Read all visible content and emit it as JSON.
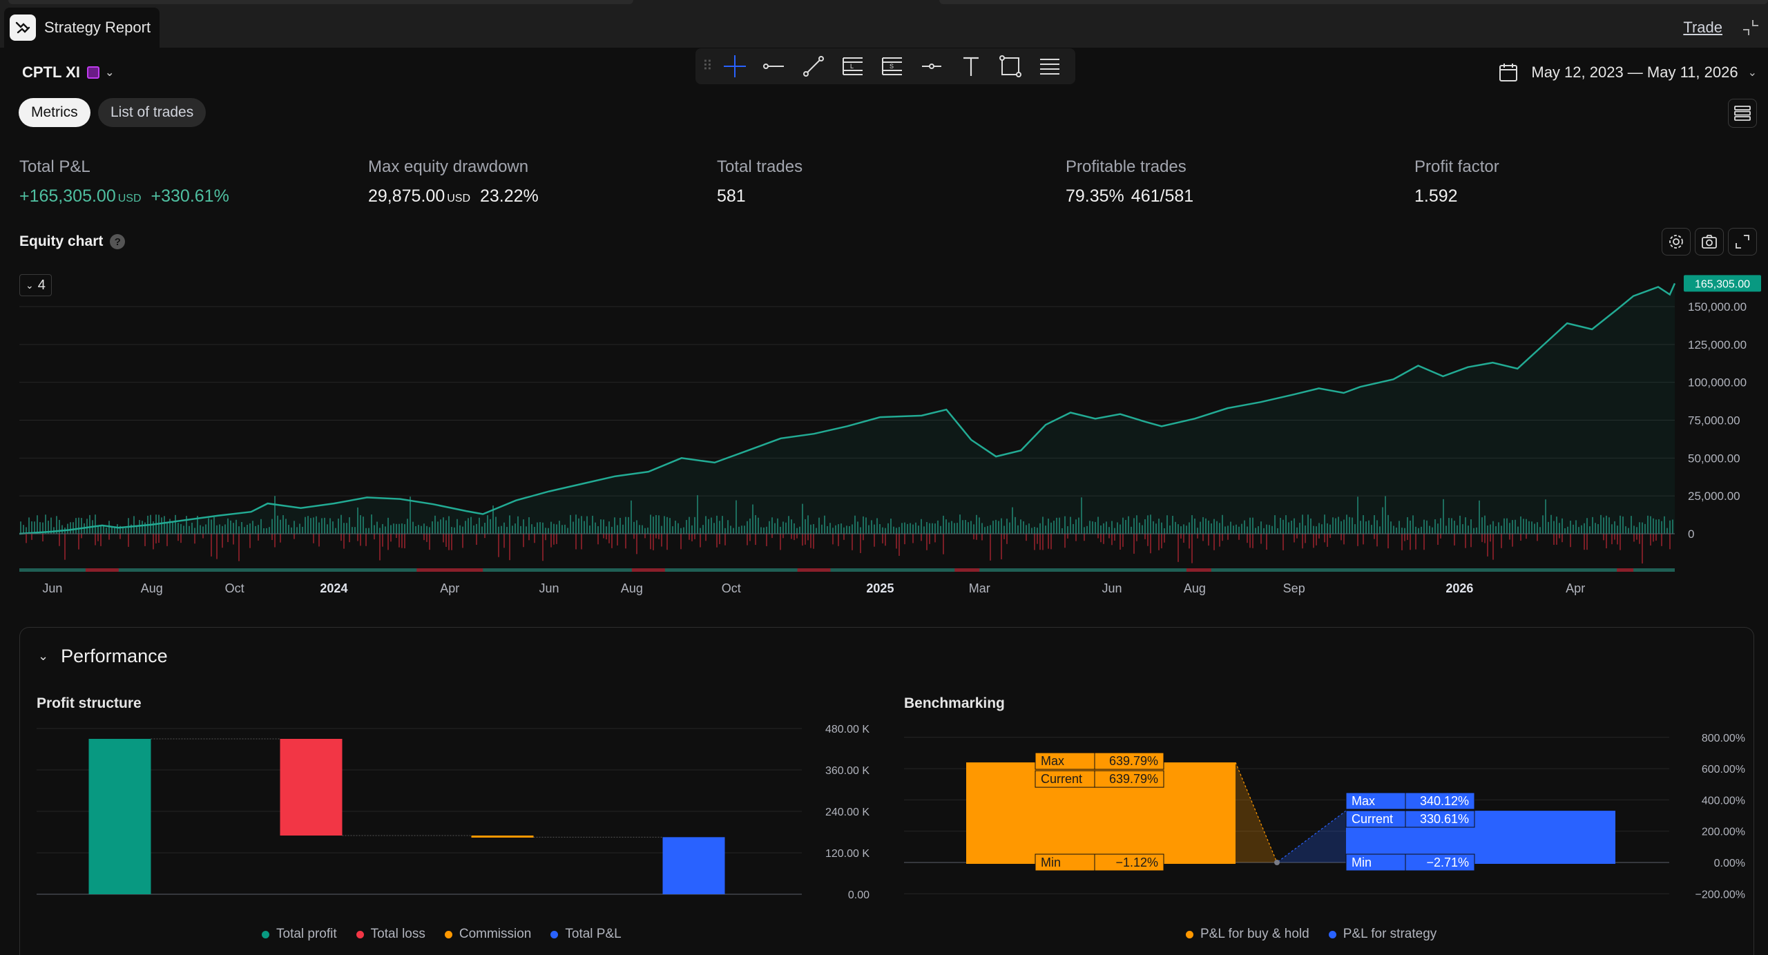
{
  "header": {
    "app_title": "Strategy Report",
    "trade_label": "Trade"
  },
  "toolbar": {
    "symbol": "CPTL XI",
    "date_range": "May 12, 2023 — May 11, 2026",
    "tabs": [
      {
        "label": "Metrics",
        "active": true
      },
      {
        "label": "List of trades",
        "active": false
      }
    ],
    "drawing_tools": [
      "crosshair-icon",
      "horizontal-ray-icon",
      "trend-line-icon",
      "long-position-icon",
      "short-position-icon",
      "price-line-icon",
      "text-icon",
      "rectangle-icon",
      "more-tools-icon"
    ]
  },
  "metrics": [
    {
      "label": "Total P&L",
      "value": "+165,305.00",
      "unit": "USD",
      "extra": "+330.61%",
      "positive": true
    },
    {
      "label": "Max equity drawdown",
      "value": "29,875.00",
      "unit": "USD",
      "extra": "23.22%",
      "positive": false
    },
    {
      "label": "Total trades",
      "value": "581",
      "unit": "",
      "extra": "",
      "positive": false
    },
    {
      "label": "Profitable trades",
      "value": "79.35%",
      "unit": "",
      "extra": "461/581",
      "positive": false
    },
    {
      "label": "Profit factor",
      "value": "1.592",
      "unit": "",
      "extra": "",
      "positive": false
    }
  ],
  "equity_chart": {
    "title": "Equity chart",
    "series_count": "4",
    "chart_data": {
      "type": "line",
      "current_value_label": "165,305.00",
      "current_value": 165305,
      "y_ticks": [
        0,
        25000,
        50000,
        75000,
        100000,
        125000,
        150000
      ],
      "y_tick_labels": [
        "0",
        "25,000.00",
        "50,000.00",
        "75,000.00",
        "100,000.00",
        "125,000.00",
        "150,000.00"
      ],
      "x_tick_labels": [
        {
          "label": "Jun",
          "bold": false
        },
        {
          "label": "Aug",
          "bold": false
        },
        {
          "label": "Oct",
          "bold": false
        },
        {
          "label": "2024",
          "bold": true
        },
        {
          "label": "Apr",
          "bold": false
        },
        {
          "label": "Jun",
          "bold": false
        },
        {
          "label": "Aug",
          "bold": false
        },
        {
          "label": "Oct",
          "bold": false
        },
        {
          "label": "2025",
          "bold": true
        },
        {
          "label": "Mar",
          "bold": false
        },
        {
          "label": "Jun",
          "bold": false
        },
        {
          "label": "Aug",
          "bold": false
        },
        {
          "label": "Sep",
          "bold": false
        },
        {
          "label": "2026",
          "bold": true
        },
        {
          "label": "Apr",
          "bold": false
        }
      ],
      "x_tick_pos": [
        0.02,
        0.08,
        0.13,
        0.19,
        0.26,
        0.32,
        0.37,
        0.43,
        0.52,
        0.58,
        0.66,
        0.71,
        0.77,
        0.87,
        0.94
      ],
      "equity": [
        [
          0.0,
          0
        ],
        [
          0.02,
          1500
        ],
        [
          0.03,
          2500
        ],
        [
          0.05,
          5500
        ],
        [
          0.06,
          4000
        ],
        [
          0.08,
          6000
        ],
        [
          0.1,
          9000
        ],
        [
          0.12,
          12000
        ],
        [
          0.14,
          14500
        ],
        [
          0.15,
          20000
        ],
        [
          0.17,
          17000
        ],
        [
          0.19,
          20000
        ],
        [
          0.21,
          24000
        ],
        [
          0.23,
          23000
        ],
        [
          0.25,
          19500
        ],
        [
          0.27,
          15000
        ],
        [
          0.28,
          13000
        ],
        [
          0.3,
          22000
        ],
        [
          0.32,
          28000
        ],
        [
          0.34,
          33000
        ],
        [
          0.36,
          38000
        ],
        [
          0.38,
          41000
        ],
        [
          0.4,
          50000
        ],
        [
          0.42,
          47000
        ],
        [
          0.44,
          55000
        ],
        [
          0.46,
          63000
        ],
        [
          0.48,
          66000
        ],
        [
          0.5,
          71000
        ],
        [
          0.52,
          77000
        ],
        [
          0.545,
          78000
        ],
        [
          0.56,
          82000
        ],
        [
          0.575,
          62000
        ],
        [
          0.59,
          51000
        ],
        [
          0.605,
          55000
        ],
        [
          0.62,
          72000
        ],
        [
          0.635,
          80000
        ],
        [
          0.65,
          76000
        ],
        [
          0.665,
          79000
        ],
        [
          0.68,
          74000
        ],
        [
          0.69,
          71000
        ],
        [
          0.71,
          76000
        ],
        [
          0.73,
          83000
        ],
        [
          0.75,
          87000
        ],
        [
          0.77,
          92000
        ],
        [
          0.785,
          96000
        ],
        [
          0.8,
          93000
        ],
        [
          0.81,
          97000
        ],
        [
          0.83,
          102000
        ],
        [
          0.845,
          111000
        ],
        [
          0.86,
          104000
        ],
        [
          0.875,
          110000
        ],
        [
          0.89,
          113000
        ],
        [
          0.905,
          109000
        ],
        [
          0.92,
          124000
        ],
        [
          0.935,
          139000
        ],
        [
          0.95,
          135000
        ],
        [
          0.965,
          148000
        ],
        [
          0.975,
          157000
        ],
        [
          0.985,
          161000
        ],
        [
          0.99,
          163000
        ],
        [
          0.997,
          158000
        ],
        [
          1.0,
          165305
        ]
      ]
    }
  },
  "performance": {
    "title": "Performance",
    "profit_structure": {
      "title": "Profit structure",
      "chart_data": {
        "type": "bar",
        "categories": [
          "Total profit",
          "Total loss",
          "Commission",
          "Total P&L"
        ],
        "bars": [
          {
            "name": "Total profit",
            "start": 0,
            "end": 450000,
            "color": "#089981"
          },
          {
            "name": "Total loss",
            "start": 450000,
            "end": 170000,
            "color": "#f23645"
          },
          {
            "name": "Commission",
            "start": 170000,
            "end": 165305,
            "color": "#ff9800"
          },
          {
            "name": "Total P&L",
            "start": 0,
            "end": 165305,
            "color": "#2962ff"
          }
        ],
        "y_ticks": [
          0,
          120000,
          240000,
          360000,
          480000
        ],
        "y_tick_labels": [
          "0.00",
          "120.00 K",
          "240.00 K",
          "360.00 K",
          "480.00 K"
        ]
      },
      "legend": [
        {
          "label": "Total profit",
          "color": "#089981"
        },
        {
          "label": "Total loss",
          "color": "#f23645"
        },
        {
          "label": "Commission",
          "color": "#ff9800"
        },
        {
          "label": "Total P&L",
          "color": "#2962ff"
        }
      ]
    },
    "benchmarking": {
      "title": "Benchmarking",
      "chart_data": {
        "type": "bar",
        "series": [
          {
            "name": "P&L for buy & hold",
            "max": 639.79,
            "current": 639.79,
            "min": -1.12,
            "max_label": "639.79%",
            "current_label": "639.79%",
            "min_label": "−1.12%",
            "color": "#ff9800"
          },
          {
            "name": "P&L for strategy",
            "max": 340.12,
            "current": 330.61,
            "min": -2.71,
            "max_label": "340.12%",
            "current_label": "330.61%",
            "min_label": "−2.71%",
            "color": "#2962ff"
          }
        ],
        "labels": {
          "max": "Max",
          "current": "Current",
          "min": "Min"
        },
        "y_ticks": [
          -200,
          0,
          200,
          400,
          600,
          800
        ],
        "y_tick_labels": [
          "−200.00%",
          "0.00%",
          "200.00%",
          "400.00%",
          "600.00%",
          "800.00%"
        ]
      },
      "legend": [
        {
          "label": "P&L for buy & hold",
          "color": "#ff9800"
        },
        {
          "label": "P&L for strategy",
          "color": "#2962ff"
        }
      ]
    }
  }
}
